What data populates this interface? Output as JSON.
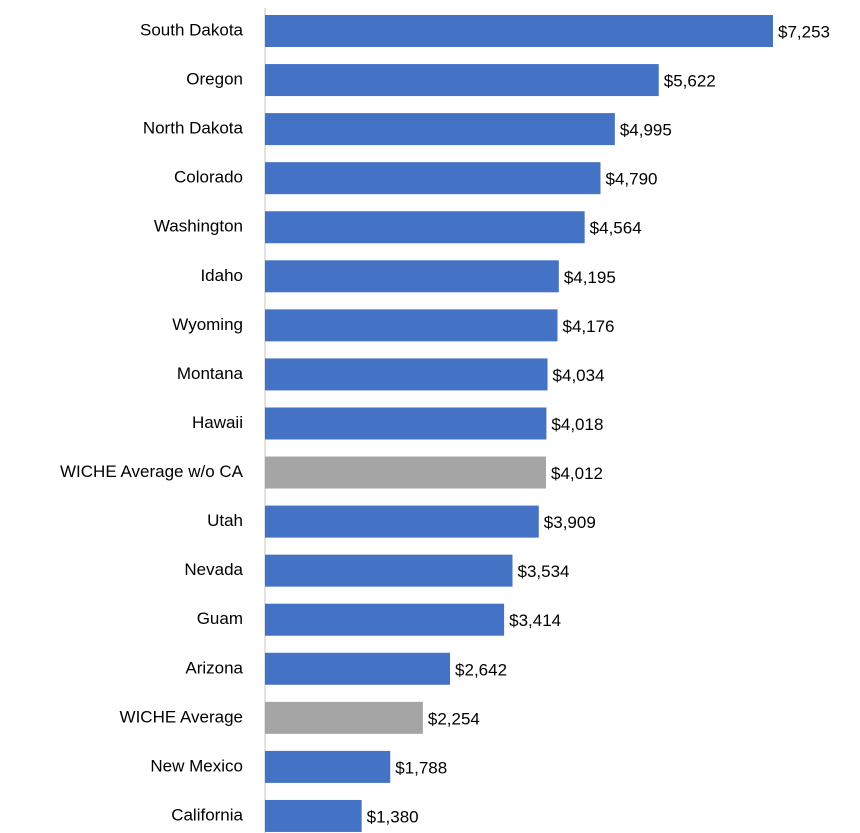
{
  "chart_data": {
    "type": "bar",
    "orientation": "horizontal",
    "categories": [
      "South Dakota",
      "Oregon",
      "North Dakota",
      "Colorado",
      "Washington",
      "Idaho",
      "Wyoming",
      "Montana",
      "Hawaii",
      "WICHE Average w/o CA",
      "Utah",
      "Nevada",
      "Guam",
      "Arizona",
      "WICHE Average",
      "New Mexico",
      "California"
    ],
    "values": [
      7253,
      5622,
      4995,
      4790,
      4564,
      4195,
      4176,
      4034,
      4018,
      4012,
      3909,
      3534,
      3414,
      2642,
      2254,
      1788,
      1380
    ],
    "value_labels": [
      "$7,253",
      "$5,622",
      "$4,995",
      "$4,790",
      "$4,564",
      "$4,195",
      "$4,176",
      "$4,034",
      "$4,018",
      "$4,012",
      "$3,909",
      "$3,534",
      "$3,414",
      "$2,642",
      "$2,254",
      "$1,788",
      "$1,380"
    ],
    "colors": [
      "#4472c4",
      "#4472c4",
      "#4472c4",
      "#4472c4",
      "#4472c4",
      "#4472c4",
      "#4472c4",
      "#4472c4",
      "#4472c4",
      "#a5a5a5",
      "#4472c4",
      "#4472c4",
      "#4472c4",
      "#4472c4",
      "#a5a5a5",
      "#4472c4",
      "#4472c4"
    ]
  }
}
